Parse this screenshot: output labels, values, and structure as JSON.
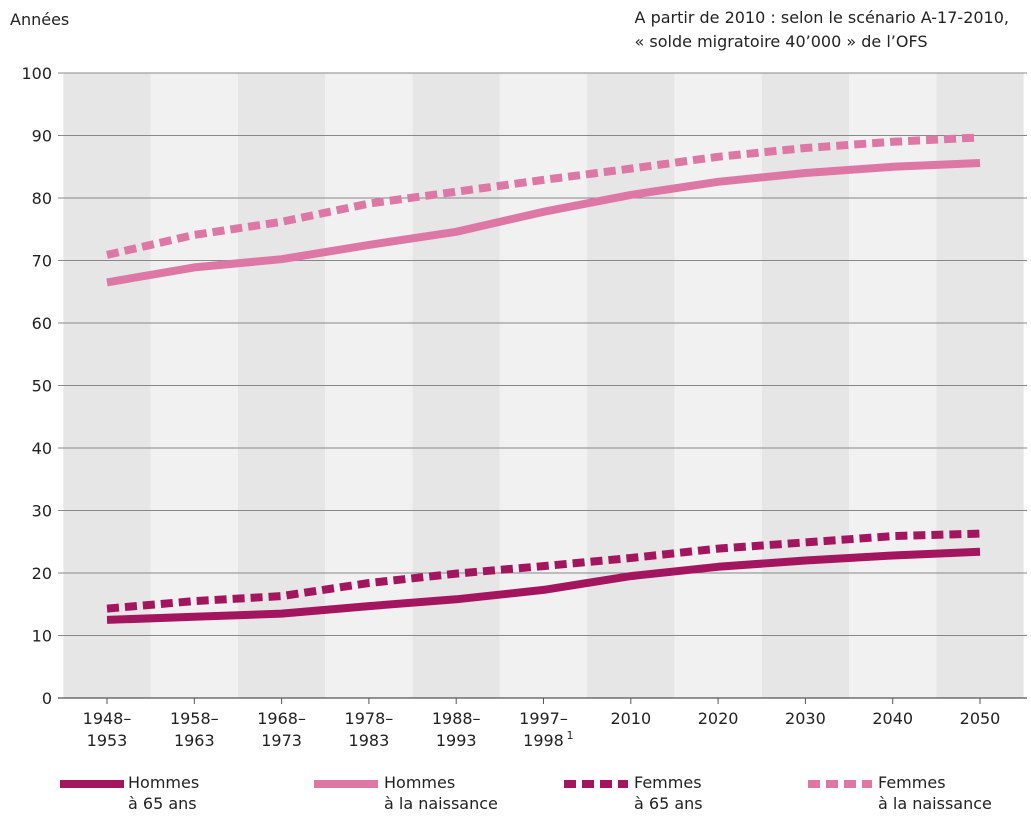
{
  "chart_data": {
    "type": "line",
    "ylabel": "Années",
    "note": [
      "A partir de 2010 : selon le scénario A-17-2010,",
      "« solde migratoire 40’000 » de l’OFS"
    ],
    "categories": [
      [
        "1948–",
        "1953"
      ],
      [
        "1958–",
        "1963"
      ],
      [
        "1968–",
        "1973"
      ],
      [
        "1978–",
        "1983"
      ],
      [
        "1988–",
        "1993"
      ],
      [
        "1997–",
        "1998"
      ],
      [
        "2010"
      ],
      [
        "2020"
      ],
      [
        "2030"
      ],
      [
        "2040"
      ],
      [
        "2050"
      ]
    ],
    "footnote_marker": "1",
    "ylim": [
      0,
      100
    ],
    "yticks": [
      0,
      10,
      20,
      30,
      40,
      50,
      60,
      70,
      80,
      90,
      100
    ],
    "grid": true,
    "series": [
      {
        "key": "hommes65",
        "name": "Hommes à 65 ans",
        "name_lines": [
          "Hommes",
          "à 65 ans"
        ],
        "color": "#a3165f",
        "dashed": false,
        "values": [
          12.5,
          13.0,
          13.5,
          14.7,
          15.8,
          17.3,
          19.5,
          21.0,
          22.0,
          22.8,
          23.4
        ]
      },
      {
        "key": "hommesNaiss",
        "name": "Hommes à la naissance",
        "name_lines": [
          "Hommes",
          "à la naissance"
        ],
        "color": "#dd77a6",
        "dashed": false,
        "values": [
          66.5,
          68.9,
          70.2,
          72.5,
          74.6,
          77.8,
          80.5,
          82.6,
          84.0,
          85.0,
          85.6
        ]
      },
      {
        "key": "femmes65",
        "name": "Femmes à 65 ans",
        "name_lines": [
          "Femmes",
          "à 65 ans"
        ],
        "color": "#a3165f",
        "dashed": true,
        "values": [
          14.3,
          15.5,
          16.3,
          18.4,
          19.9,
          21.1,
          22.4,
          23.9,
          24.9,
          25.9,
          26.3
        ]
      },
      {
        "key": "femmesNaiss",
        "name": "Femmes à la naissance",
        "name_lines": [
          "Femmes",
          "à la naissance"
        ],
        "color": "#dd77a6",
        "dashed": true,
        "values": [
          70.9,
          74.1,
          76.2,
          79.1,
          81.0,
          82.9,
          84.7,
          86.6,
          88.0,
          89.0,
          89.7
        ]
      }
    ]
  }
}
